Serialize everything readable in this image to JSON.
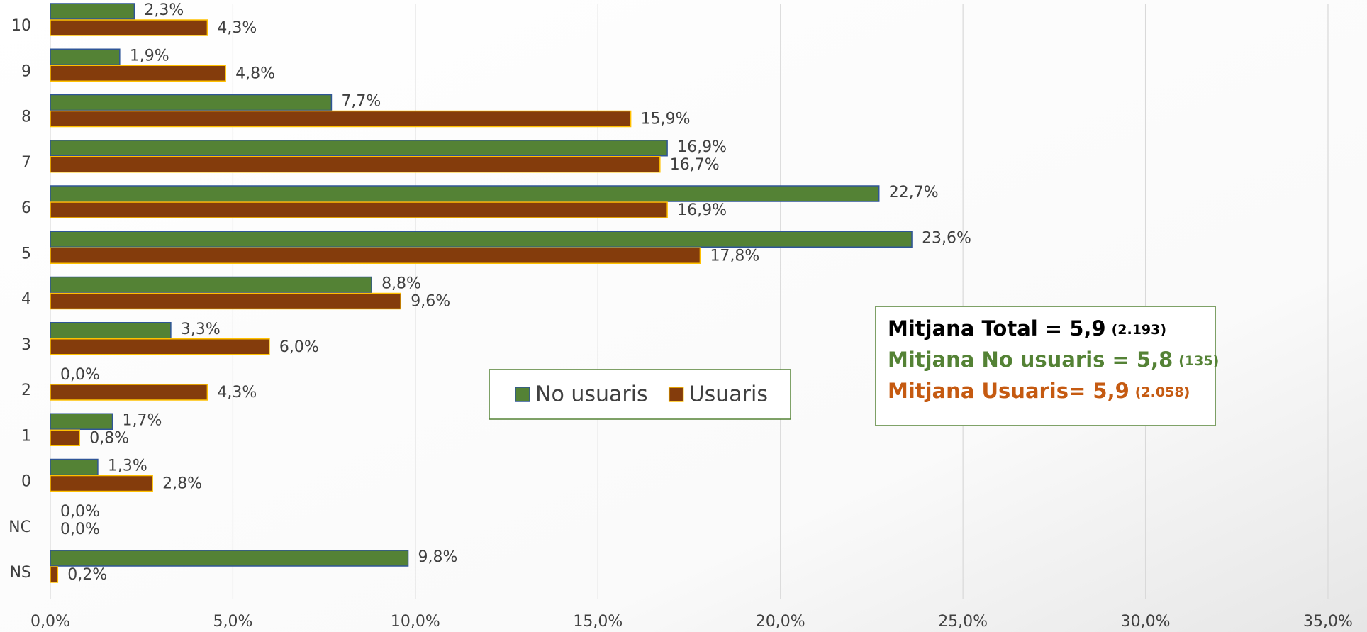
{
  "chart_data": {
    "type": "barh",
    "categories": [
      "10",
      "9",
      "8",
      "7",
      "6",
      "5",
      "4",
      "3",
      "2",
      "1",
      "0",
      "NC",
      "NS"
    ],
    "series": [
      {
        "name": "No usuaris",
        "color": "#548235",
        "edgecolor": "#2f5597",
        "values": [
          2.3,
          1.9,
          7.7,
          16.9,
          22.7,
          23.6,
          8.8,
          3.3,
          0.0,
          1.7,
          1.3,
          0.0,
          9.8
        ],
        "value_labels": [
          "2,3%",
          "1,9%",
          "7,7%",
          "16,9%",
          "22,7%",
          "23,6%",
          "8,8%",
          "3,3%",
          "0,0%",
          "1,7%",
          "1,3%",
          "0,0%",
          "9,8%"
        ]
      },
      {
        "name": "Usuaris",
        "color": "#843c0c",
        "edgecolor": "#ffc000",
        "values": [
          4.3,
          4.8,
          15.9,
          16.7,
          16.9,
          17.8,
          9.6,
          6.0,
          4.3,
          0.8,
          2.8,
          0.0,
          0.2
        ],
        "value_labels": [
          "4,3%",
          "4,8%",
          "15,9%",
          "16,7%",
          "16,9%",
          "17,8%",
          "9,6%",
          "6,0%",
          "4,3%",
          "0,8%",
          "2,8%",
          "0,0%",
          "0,2%"
        ]
      }
    ],
    "xlim": [
      0,
      35
    ],
    "xticks": [
      {
        "value": 0,
        "label": "0,0%"
      },
      {
        "value": 5,
        "label": "5,0%"
      },
      {
        "value": 10,
        "label": "10,0%"
      },
      {
        "value": 15,
        "label": "15,0%"
      },
      {
        "value": 20,
        "label": "20,0%"
      },
      {
        "value": 25,
        "label": "25,0%"
      },
      {
        "value": 30,
        "label": "30,0%"
      },
      {
        "value": 35,
        "label": "35,0%"
      }
    ],
    "grid": true,
    "annotations": [
      {
        "main": "Mitjana Total = 5,9",
        "count": "(2.193)",
        "color": "#000000"
      },
      {
        "main": "Mitjana No usuaris = 5,8",
        "count": "(135)",
        "color": "#548235"
      },
      {
        "main": "Mitjana Usuaris= 5,9",
        "count": "(2.058)",
        "color": "#c55a11"
      }
    ]
  }
}
